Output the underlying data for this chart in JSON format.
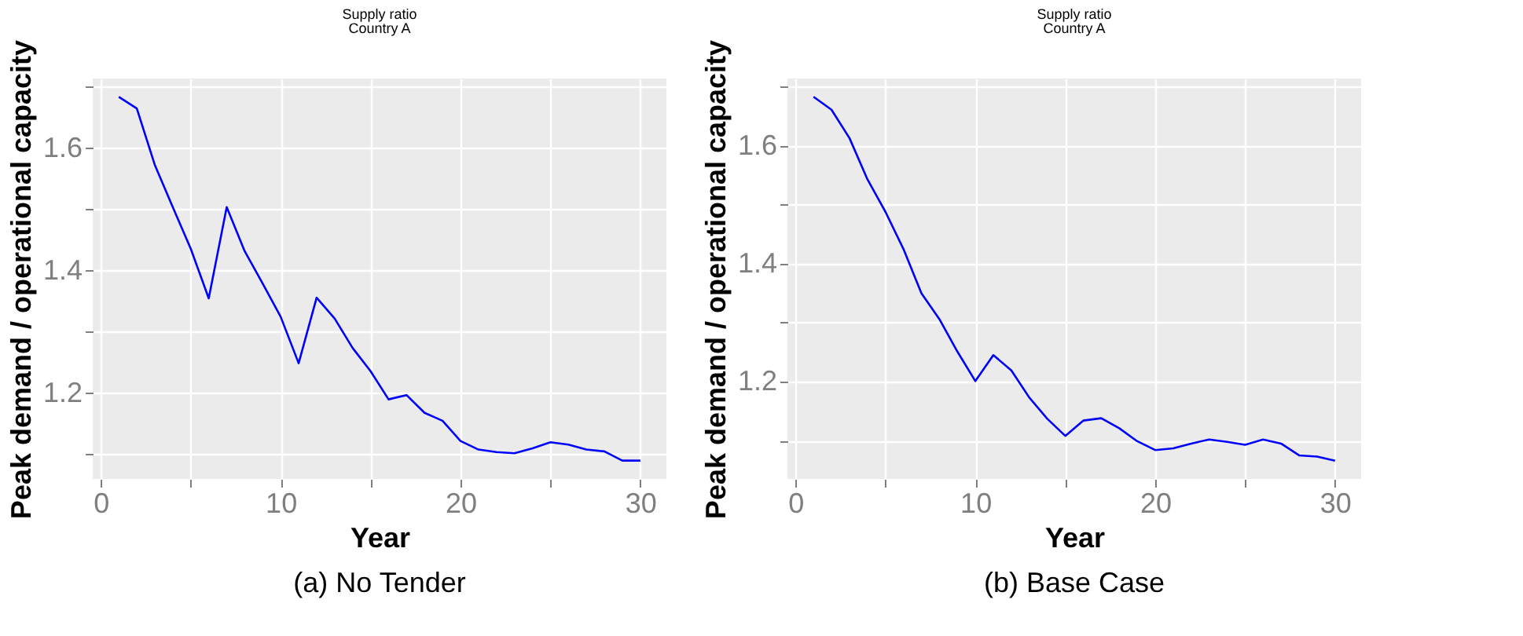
{
  "chart_data": [
    {
      "type": "line",
      "title": "Supply ratio",
      "subtitle": "Country A",
      "xlabel": "Year",
      "ylabel": "Peak demand / operational capacity",
      "annotations": [
        "(a) No Tender"
      ],
      "color": "#0000ff",
      "line_style": "solid",
      "grid": true,
      "x": [
        1,
        2,
        3,
        4,
        5,
        6,
        7,
        8,
        9,
        10,
        11,
        12,
        13,
        14,
        15,
        16,
        17,
        18,
        19,
        20,
        21,
        22,
        23,
        24,
        25,
        26,
        27,
        28,
        29,
        30
      ],
      "values": [
        1.684,
        1.665,
        1.573,
        1.504,
        1.436,
        1.355,
        1.504,
        1.432,
        1.379,
        1.325,
        1.249,
        1.356,
        1.322,
        1.274,
        1.236,
        1.19,
        1.197,
        1.168,
        1.155,
        1.122,
        1.108,
        1.104,
        1.102,
        1.11,
        1.12,
        1.116,
        1.108,
        1.105,
        1.09,
        1.09
      ],
      "xlim": [
        -0.45,
        31.45
      ],
      "ylim": [
        1.06,
        1.714
      ],
      "xticks": [
        0,
        {
          "value": 5,
          "label": null
        },
        10,
        {
          "value": 15,
          "label": null
        },
        20,
        {
          "value": 25,
          "label": null
        },
        30
      ],
      "yticks": [
        {
          "value": 1.1,
          "label": null
        },
        1.2,
        {
          "value": 1.3,
          "label": null
        },
        1.4,
        {
          "value": 1.5,
          "label": null
        },
        1.6,
        {
          "value": 1.7,
          "label": null
        }
      ]
    },
    {
      "type": "line",
      "title": "Supply ratio",
      "subtitle": "Country A",
      "xlabel": "Year",
      "ylabel": "Peak demand / operational capacity",
      "annotations": [
        "(b) Base Case"
      ],
      "color": "#0000ff",
      "line_style": "solid",
      "grid": true,
      "x": [
        1,
        2,
        3,
        4,
        5,
        6,
        7,
        8,
        9,
        10,
        11,
        12,
        13,
        14,
        15,
        16,
        17,
        18,
        19,
        20,
        21,
        22,
        23,
        24,
        25,
        26,
        27,
        28,
        29,
        30
      ],
      "values": [
        1.683,
        1.661,
        1.613,
        1.543,
        1.488,
        1.425,
        1.35,
        1.306,
        1.251,
        1.201,
        1.245,
        1.219,
        1.173,
        1.137,
        1.108,
        1.134,
        1.138,
        1.121,
        1.099,
        1.084,
        1.087,
        1.095,
        1.102,
        1.098,
        1.093,
        1.102,
        1.095,
        1.075,
        1.073,
        1.066
      ],
      "xlim": [
        -0.45,
        31.45
      ],
      "ylim": [
        1.035,
        1.714
      ],
      "xticks": [
        0,
        {
          "value": 5,
          "label": null
        },
        10,
        {
          "value": 15,
          "label": null
        },
        20,
        {
          "value": 25,
          "label": null
        },
        30
      ],
      "yticks": [
        {
          "value": 1.1,
          "label": null
        },
        1.2,
        {
          "value": 1.3,
          "label": null
        },
        1.4,
        {
          "value": 1.5,
          "label": null
        },
        1.6,
        {
          "value": 1.7,
          "label": null
        }
      ]
    }
  ]
}
